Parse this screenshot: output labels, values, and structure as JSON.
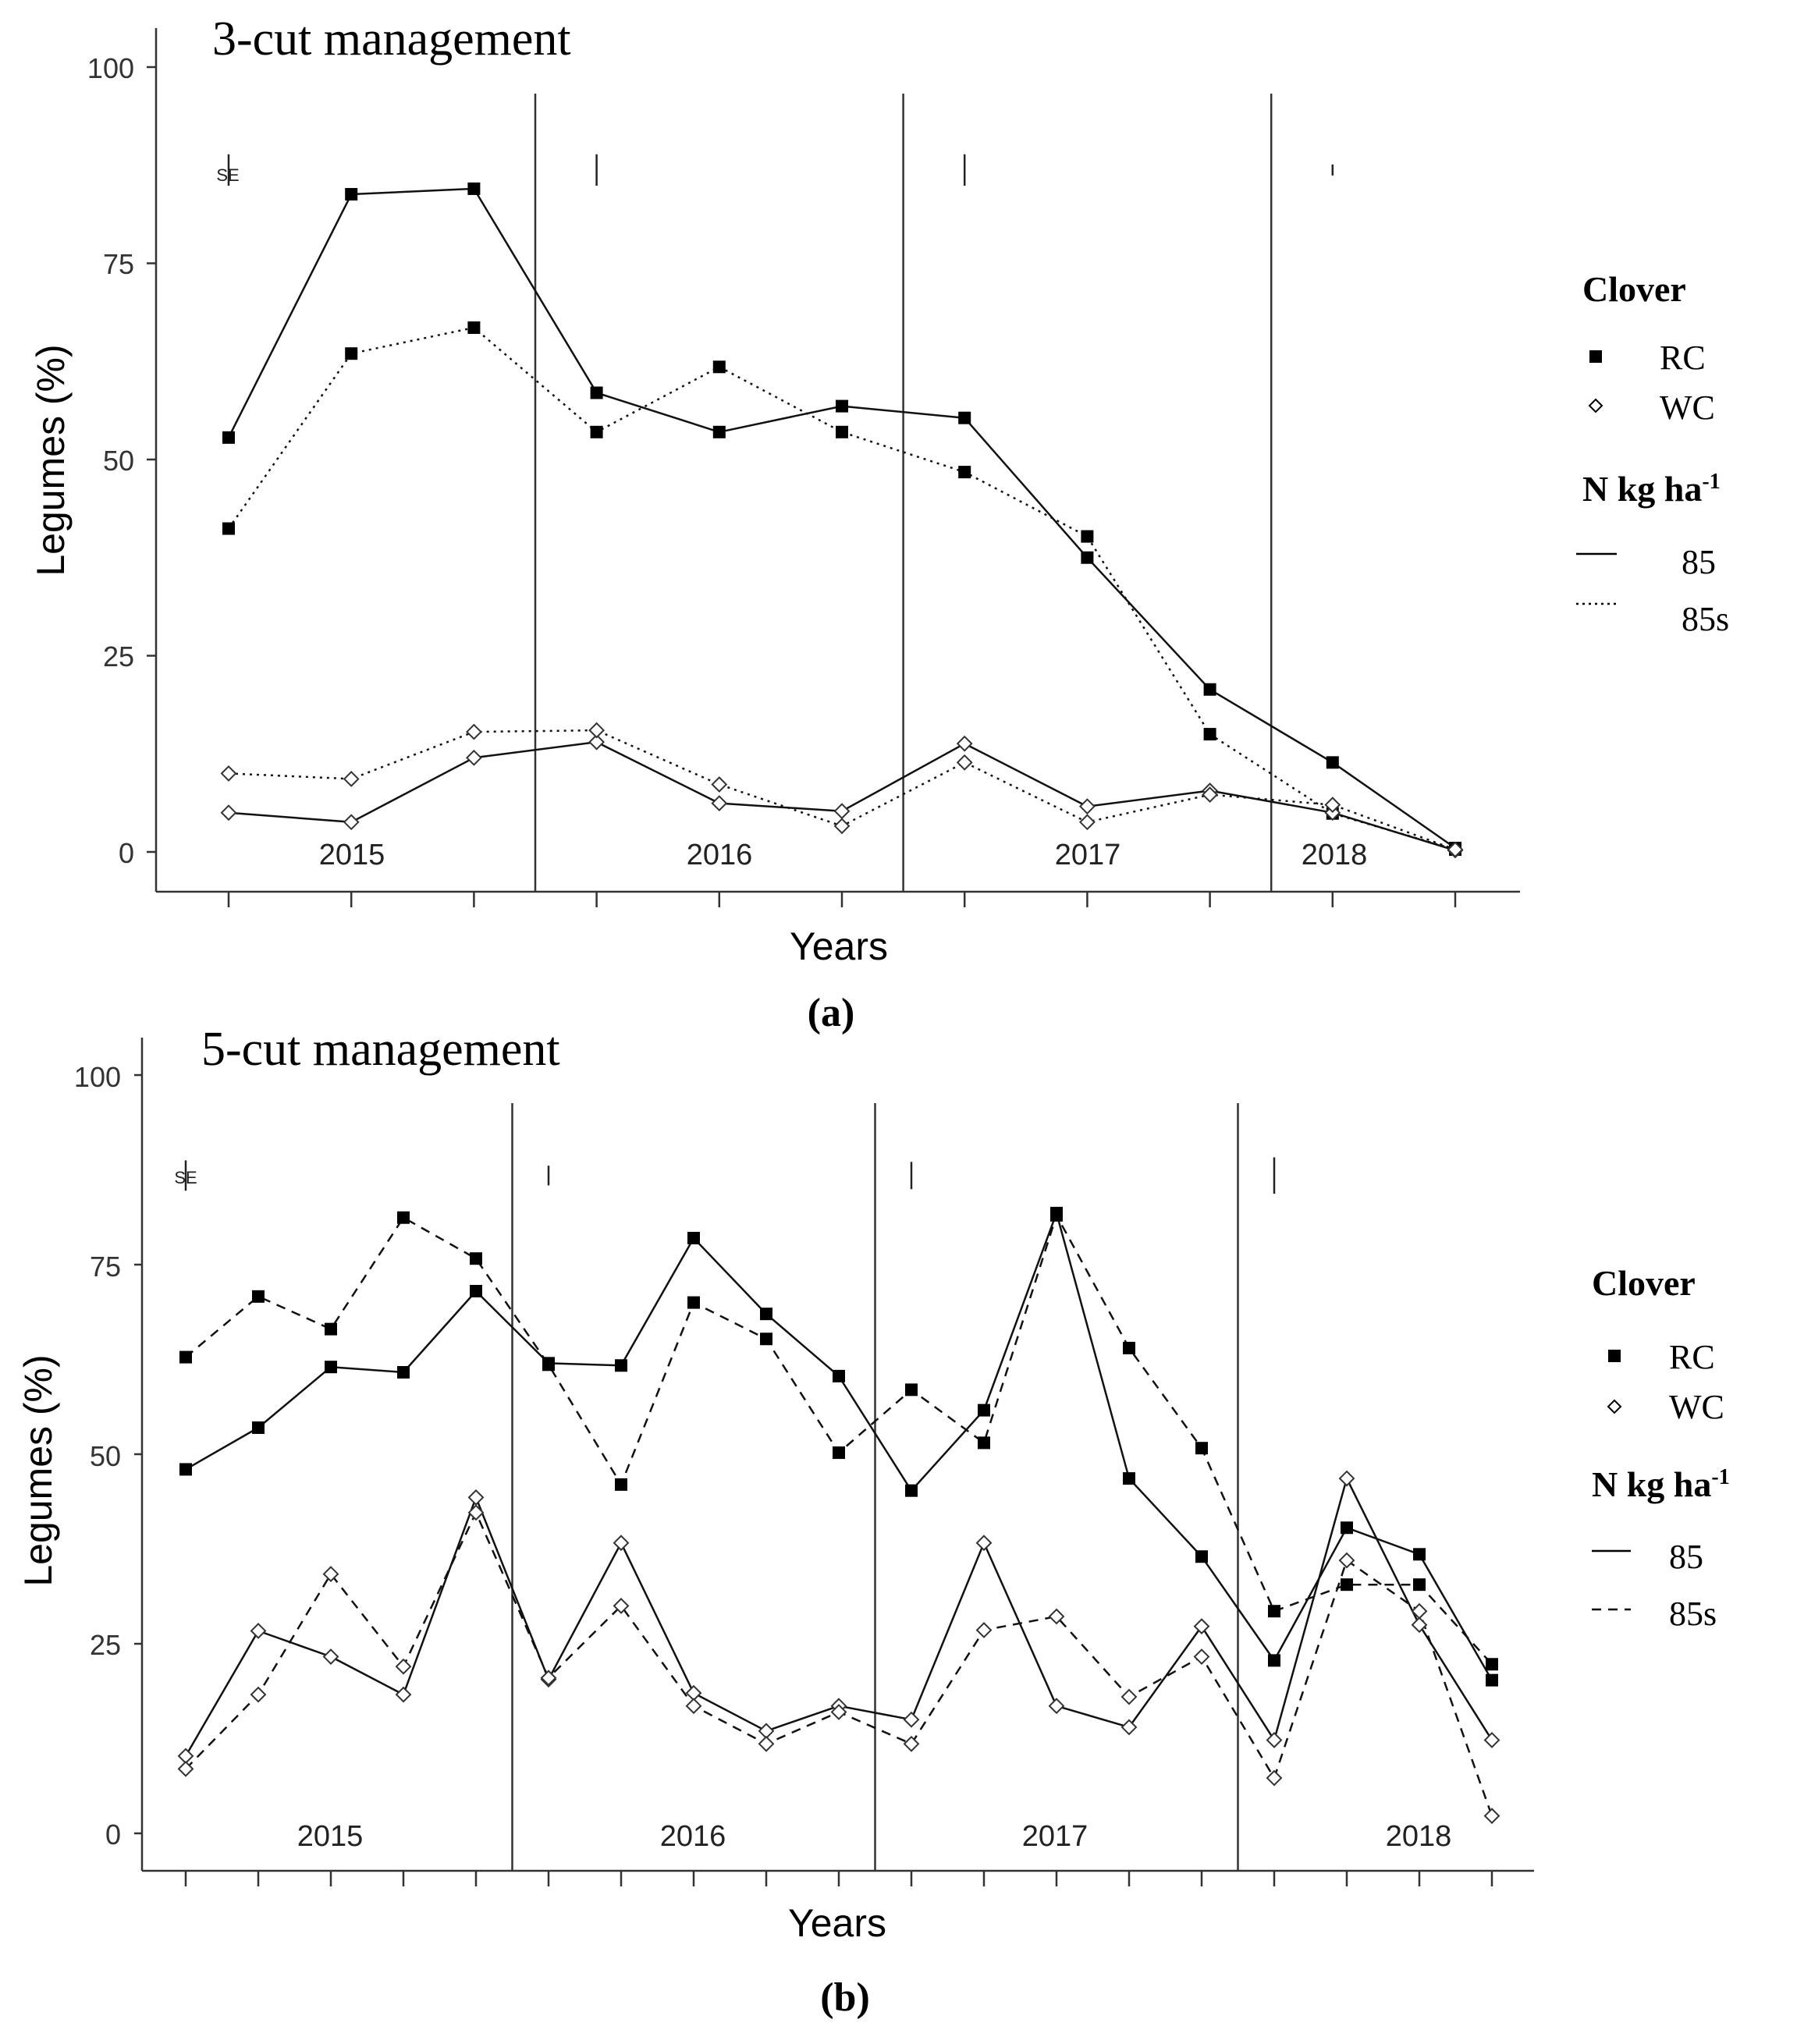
{
  "chart_data": [
    {
      "type": "line",
      "title": "3-cut management",
      "panel_label": "(a)",
      "xlabel": "Years",
      "ylabel": "Legumes (%)",
      "ylim": [
        0,
        100
      ],
      "yticks": [
        0,
        25,
        50,
        75,
        100
      ],
      "grid": false,
      "years": [
        "2015",
        "2016",
        "2017",
        "2018"
      ],
      "cuts_per_year": [
        3,
        3,
        3,
        2
      ],
      "x": [
        1,
        2,
        3,
        4,
        5,
        6,
        7,
        8,
        9,
        10,
        11
      ],
      "se_label": "SE",
      "se_bars": [
        {
          "x": 1,
          "half": 2
        },
        {
          "x": 4,
          "half": 2
        },
        {
          "x": 7,
          "half": 2
        },
        {
          "x": 10,
          "half": 0.7
        }
      ],
      "legend": {
        "position": "right",
        "clover_title": "Clover",
        "clover": [
          {
            "symbol": "square",
            "label": "RC"
          },
          {
            "symbol": "diamond",
            "label": "WC"
          }
        ],
        "n_title": "N  kg ha",
        "n_title_sup": "-1",
        "n": [
          {
            "style": "solid",
            "label": "85"
          },
          {
            "style": "dotted",
            "label": "85s"
          }
        ]
      },
      "series": [
        {
          "name": "RC 85",
          "clover": "RC",
          "n": "85",
          "style": "solid",
          "values": [
            52.8,
            83.8,
            84.5,
            58.5,
            53.5,
            56.8,
            55.3,
            37.5,
            20.7,
            11.4,
            0.5
          ]
        },
        {
          "name": "RC 85s",
          "clover": "RC",
          "n": "85s",
          "style": "dotted",
          "values": [
            41.2,
            63.5,
            66.8,
            53.5,
            61.8,
            53.5,
            48.4,
            40.2,
            15.0,
            4.9,
            0.3
          ]
        },
        {
          "name": "WC 85",
          "clover": "WC",
          "n": "85",
          "style": "solid",
          "values": [
            5.0,
            3.8,
            12.0,
            14.0,
            6.2,
            5.2,
            13.8,
            5.8,
            7.8,
            5.0,
            0.2
          ]
        },
        {
          "name": "WC 85s",
          "clover": "WC",
          "n": "85s",
          "style": "dotted",
          "values": [
            10.0,
            9.3,
            15.3,
            15.5,
            8.6,
            3.3,
            11.4,
            3.8,
            7.3,
            6.0,
            0.3
          ]
        }
      ]
    },
    {
      "type": "line",
      "title": "5-cut management",
      "panel_label": "(b)",
      "xlabel": "Years",
      "ylabel": "Legumes (%)",
      "ylim": [
        0,
        100
      ],
      "yticks": [
        0,
        25,
        50,
        75,
        100
      ],
      "grid": false,
      "years": [
        "2015",
        "2016",
        "2017",
        "2018"
      ],
      "cuts_per_year": [
        5,
        5,
        5,
        4
      ],
      "x": [
        1,
        2,
        3,
        4,
        5,
        6,
        7,
        8,
        9,
        10,
        11,
        12,
        13,
        14,
        15,
        16,
        17,
        18,
        19
      ],
      "se_label": "SE",
      "se_bars": [
        {
          "x": 1,
          "half": 2
        },
        {
          "x": 6,
          "half": 1.3
        },
        {
          "x": 11,
          "half": 1.8
        },
        {
          "x": 16,
          "half": 2.4
        }
      ],
      "legend": {
        "position": "right",
        "clover_title": "Clover",
        "clover": [
          {
            "symbol": "square",
            "label": "RC"
          },
          {
            "symbol": "diamond",
            "label": "WC"
          }
        ],
        "n_title": "N  kg ha",
        "n_title_sup": "-1",
        "n": [
          {
            "style": "solid",
            "label": "85"
          },
          {
            "style": "dashed",
            "label": "85s"
          }
        ]
      },
      "series": [
        {
          "name": "RC 85",
          "clover": "RC",
          "n": "85",
          "style": "solid",
          "values": [
            48.0,
            53.5,
            61.5,
            60.8,
            71.5,
            62.0,
            61.7,
            78.5,
            68.5,
            60.3,
            45.2,
            55.8,
            81.8,
            46.8,
            36.5,
            22.8,
            40.3,
            36.8,
            20.2
          ]
        },
        {
          "name": "RC 85s",
          "clover": "RC",
          "n": "85s",
          "style": "dashed",
          "values": [
            62.8,
            70.8,
            66.5,
            81.2,
            75.8,
            61.8,
            46.0,
            70.0,
            65.2,
            50.2,
            58.5,
            51.5,
            81.5,
            64.0,
            50.8,
            29.3,
            32.8,
            32.8,
            22.3
          ]
        },
        {
          "name": "WC 85",
          "clover": "WC",
          "n": "85",
          "style": "solid",
          "values": [
            10.2,
            26.7,
            23.3,
            18.3,
            44.3,
            20.3,
            38.3,
            18.5,
            13.5,
            16.8,
            15.0,
            38.3,
            16.8,
            14.0,
            27.3,
            12.3,
            46.8,
            27.5,
            12.3
          ]
        },
        {
          "name": "WC 85s",
          "clover": "WC",
          "n": "85s",
          "style": "dashed",
          "values": [
            8.5,
            18.3,
            34.2,
            22.0,
            42.3,
            20.5,
            30.0,
            16.8,
            11.8,
            16.0,
            11.8,
            26.8,
            28.6,
            18.0,
            23.3,
            7.3,
            36.0,
            29.3,
            2.3
          ]
        }
      ]
    }
  ]
}
